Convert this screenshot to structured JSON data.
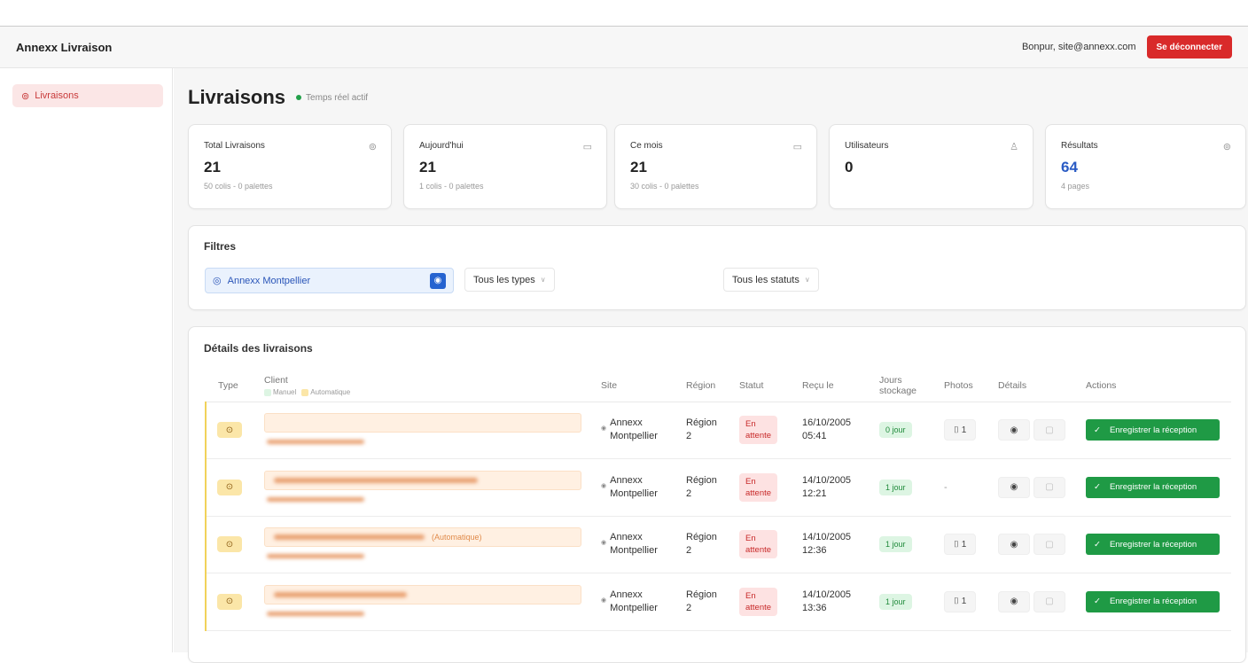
{
  "header": {
    "brand": "Annexx Livraison",
    "greeting": "Bonpur, site@annexx.com",
    "logout": "Se déconnecter"
  },
  "sidebar": {
    "items": [
      {
        "label": "Livraisons",
        "icon": "package-icon",
        "active": true
      }
    ]
  },
  "page": {
    "title": "Livraisons",
    "live": "Temps réel actif"
  },
  "stats": [
    {
      "label": "Total Livraisons",
      "value": "21",
      "sub": "50 colis - 0 palettes",
      "icon": "package-icon"
    },
    {
      "label": "Aujourd'hui",
      "value": "21",
      "sub": "1 colis - 0 palettes",
      "icon": "calendar-icon"
    },
    {
      "label": "Ce mois",
      "value": "21",
      "sub": "30 colis - 0 palettes",
      "icon": "calendar-icon"
    },
    {
      "label": "Utilisateurs",
      "value": "0",
      "sub": "",
      "icon": "user-icon"
    },
    {
      "label": "Résultats",
      "value": "64",
      "sub": "4 pages",
      "icon": "package-icon",
      "accent": "#2a5bc4"
    }
  ],
  "filters": {
    "title": "Filtres",
    "location": "Annexx Montpellier",
    "type": "Tous les types",
    "status": "Tous les statuts"
  },
  "table": {
    "title": "Détails des livraisons",
    "columns": [
      "Type",
      "Client",
      "Site",
      "Région",
      "Statut",
      "Reçu le",
      "Jours stockage",
      "Photos",
      "Détails",
      "Actions"
    ],
    "legend": [
      "Manuel",
      "Automatique"
    ],
    "rows": [
      {
        "client_note": "",
        "site": "Annexx",
        "site2": "Montpellier",
        "region": "Région",
        "region2": "2",
        "status": "En",
        "status2": "attente",
        "date": "16/10/2005",
        "time": "05:41",
        "days": "0 jour",
        "photos": "1",
        "action": "Enregistrer la réception"
      },
      {
        "client_note": "",
        "site": "Annexx",
        "site2": "Montpellier",
        "region": "Région",
        "region2": "2",
        "status": "En",
        "status2": "attente",
        "date": "14/10/2005",
        "time": "12:21",
        "days": "1 jour",
        "photos": "-",
        "action": "Enregistrer la réception"
      },
      {
        "client_note": "(Automatique)",
        "site": "Annexx",
        "site2": "Montpellier",
        "region": "Région",
        "region2": "2",
        "status": "En",
        "status2": "attente",
        "date": "14/10/2005",
        "time": "12:36",
        "days": "1 jour",
        "photos": "1",
        "action": "Enregistrer la réception"
      },
      {
        "client_note": "",
        "site": "Annexx",
        "site2": "Montpellier",
        "region": "Région",
        "region2": "2",
        "status": "En",
        "status2": "attente",
        "date": "14/10/2005",
        "time": "13:36",
        "days": "1 jour",
        "photos": "1",
        "action": "Enregistrer la réception"
      }
    ]
  }
}
